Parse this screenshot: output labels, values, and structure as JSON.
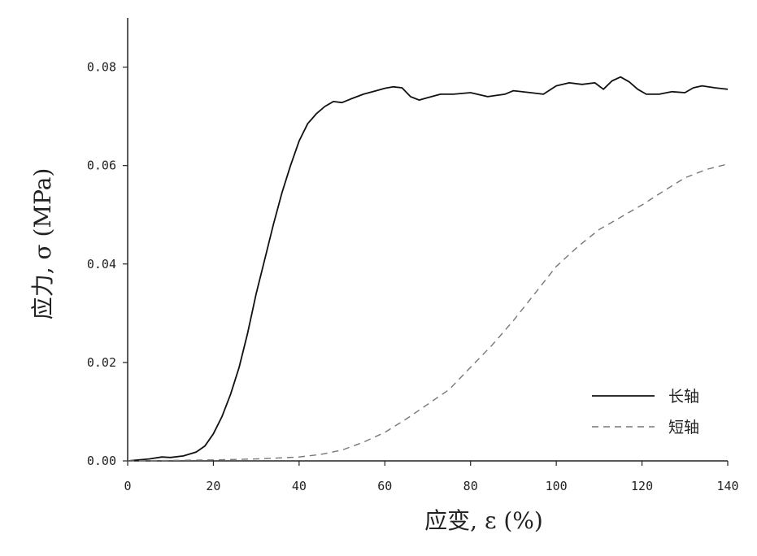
{
  "chart_data": {
    "type": "line",
    "title": "",
    "xlabel": "应变, ε (%)",
    "ylabel": "应力, σ (MPa)",
    "xlim": [
      0,
      140
    ],
    "ylim": [
      0,
      0.09
    ],
    "xticks": [
      "0",
      "20",
      "40",
      "60",
      "80",
      "100",
      "120",
      "140"
    ],
    "yticks": [
      "0.00",
      "0.02",
      "0.04",
      "0.06",
      "0.08"
    ],
    "legend_position": "bottom-right",
    "grid": false,
    "series": [
      {
        "name": "长轴",
        "style": "solid",
        "color": "#111111",
        "points": [
          [
            0,
            0
          ],
          [
            5,
            0.0004
          ],
          [
            8,
            0.0008
          ],
          [
            10,
            0.0007
          ],
          [
            13,
            0.001
          ],
          [
            16,
            0.0018
          ],
          [
            18,
            0.003
          ],
          [
            20,
            0.0055
          ],
          [
            22,
            0.009
          ],
          [
            24,
            0.0135
          ],
          [
            26,
            0.019
          ],
          [
            28,
            0.026
          ],
          [
            30,
            0.034
          ],
          [
            32,
            0.041
          ],
          [
            34,
            0.048
          ],
          [
            36,
            0.0545
          ],
          [
            38,
            0.06
          ],
          [
            40,
            0.065
          ],
          [
            42,
            0.0685
          ],
          [
            44,
            0.0705
          ],
          [
            46,
            0.072
          ],
          [
            48,
            0.073
          ],
          [
            50,
            0.0728
          ],
          [
            52,
            0.0735
          ],
          [
            55,
            0.0745
          ],
          [
            58,
            0.0752
          ],
          [
            60,
            0.0757
          ],
          [
            62,
            0.076
          ],
          [
            64,
            0.0758
          ],
          [
            66,
            0.074
          ],
          [
            68,
            0.0733
          ],
          [
            70,
            0.0738
          ],
          [
            73,
            0.0745
          ],
          [
            76,
            0.0745
          ],
          [
            80,
            0.0748
          ],
          [
            84,
            0.074
          ],
          [
            88,
            0.0745
          ],
          [
            90,
            0.0752
          ],
          [
            94,
            0.0748
          ],
          [
            97,
            0.0745
          ],
          [
            100,
            0.0762
          ],
          [
            103,
            0.0768
          ],
          [
            106,
            0.0765
          ],
          [
            109,
            0.0768
          ],
          [
            111,
            0.0755
          ],
          [
            113,
            0.0772
          ],
          [
            115,
            0.078
          ],
          [
            117,
            0.077
          ],
          [
            119,
            0.0755
          ],
          [
            121,
            0.0745
          ],
          [
            124,
            0.0745
          ],
          [
            127,
            0.075
          ],
          [
            130,
            0.0748
          ],
          [
            132,
            0.0758
          ],
          [
            134,
            0.0762
          ],
          [
            137,
            0.0758
          ],
          [
            140,
            0.0755
          ]
        ]
      },
      {
        "name": "短轴",
        "style": "dashed",
        "color": "#777777",
        "points": [
          [
            0,
            0
          ],
          [
            20,
            0.0002
          ],
          [
            30,
            0.0004
          ],
          [
            40,
            0.0008
          ],
          [
            45,
            0.0013
          ],
          [
            50,
            0.0022
          ],
          [
            55,
            0.0038
          ],
          [
            60,
            0.0058
          ],
          [
            65,
            0.0085
          ],
          [
            70,
            0.0115
          ],
          [
            75,
            0.0145
          ],
          [
            80,
            0.019
          ],
          [
            85,
            0.0235
          ],
          [
            90,
            0.0285
          ],
          [
            95,
            0.034
          ],
          [
            100,
            0.0395
          ],
          [
            105,
            0.0435
          ],
          [
            110,
            0.047
          ],
          [
            115,
            0.0495
          ],
          [
            120,
            0.052
          ],
          [
            125,
            0.0548
          ],
          [
            130,
            0.0575
          ],
          [
            135,
            0.0592
          ],
          [
            140,
            0.0603
          ]
        ]
      }
    ]
  }
}
